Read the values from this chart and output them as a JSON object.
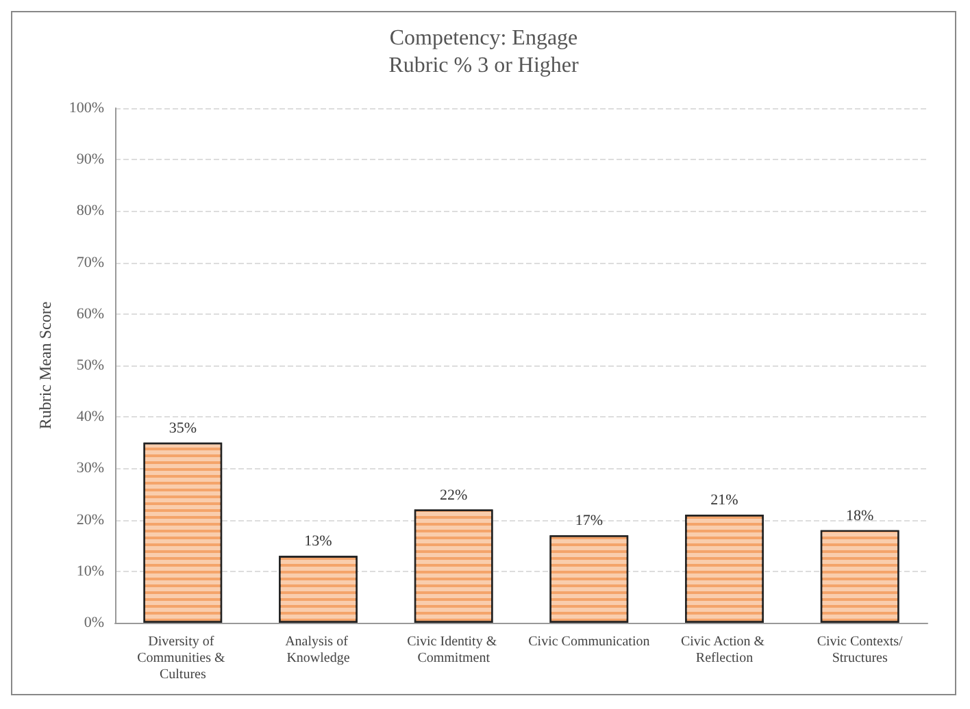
{
  "chart_data": {
    "type": "bar",
    "title": "Competency: Engage",
    "subtitle": "Rubric % 3 or Higher",
    "ylabel": "Rubric Mean Score",
    "categories": [
      "Diversity of Communities & Cultures",
      "Analysis of Knowledge",
      "Civic Identity & Commitment",
      "Civic Communication",
      "Civic Action & Reflection",
      "Civic Contexts/Structures"
    ],
    "values": [
      35,
      13,
      22,
      17,
      21,
      18
    ],
    "value_labels": [
      "35%",
      "13%",
      "22%",
      "17%",
      "21%",
      "18%"
    ],
    "color": "#f4a46a",
    "ylim": [
      0,
      100
    ],
    "yticks": [
      {
        "value": 0,
        "label": "0%"
      },
      {
        "value": 10,
        "label": "10%"
      },
      {
        "value": 20,
        "label": "20%"
      },
      {
        "value": 30,
        "label": "30%"
      },
      {
        "value": 40,
        "label": "40%"
      },
      {
        "value": 50,
        "label": "50%"
      },
      {
        "value": 60,
        "label": "60%"
      },
      {
        "value": 70,
        "label": "70%"
      },
      {
        "value": 80,
        "label": "80%"
      },
      {
        "value": 90,
        "label": "90%"
      },
      {
        "value": 100,
        "label": "100%"
      }
    ],
    "grid": "y"
  }
}
